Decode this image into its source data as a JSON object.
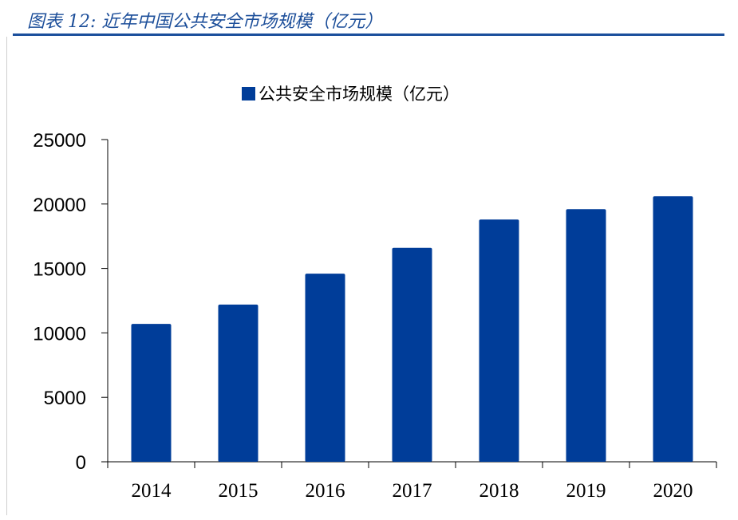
{
  "figure_title": "图表 12:  近年中国公共安全市场规模（亿元）",
  "chart_data": {
    "type": "bar",
    "categories": [
      "2014",
      "2015",
      "2016",
      "2017",
      "2018",
      "2019",
      "2020"
    ],
    "series": [
      {
        "name": "公共安全市场规模（亿元）",
        "values": [
          10700,
          12200,
          14600,
          16600,
          18800,
          19600,
          20600
        ]
      }
    ],
    "ylim": [
      0,
      25000
    ],
    "yticks": [
      0,
      5000,
      10000,
      15000,
      20000,
      25000
    ],
    "xlabel": "",
    "ylabel": "",
    "grid": false,
    "legend_position": "top-center",
    "bar_color": "#003d99",
    "title_color": "#1d4f9a"
  }
}
